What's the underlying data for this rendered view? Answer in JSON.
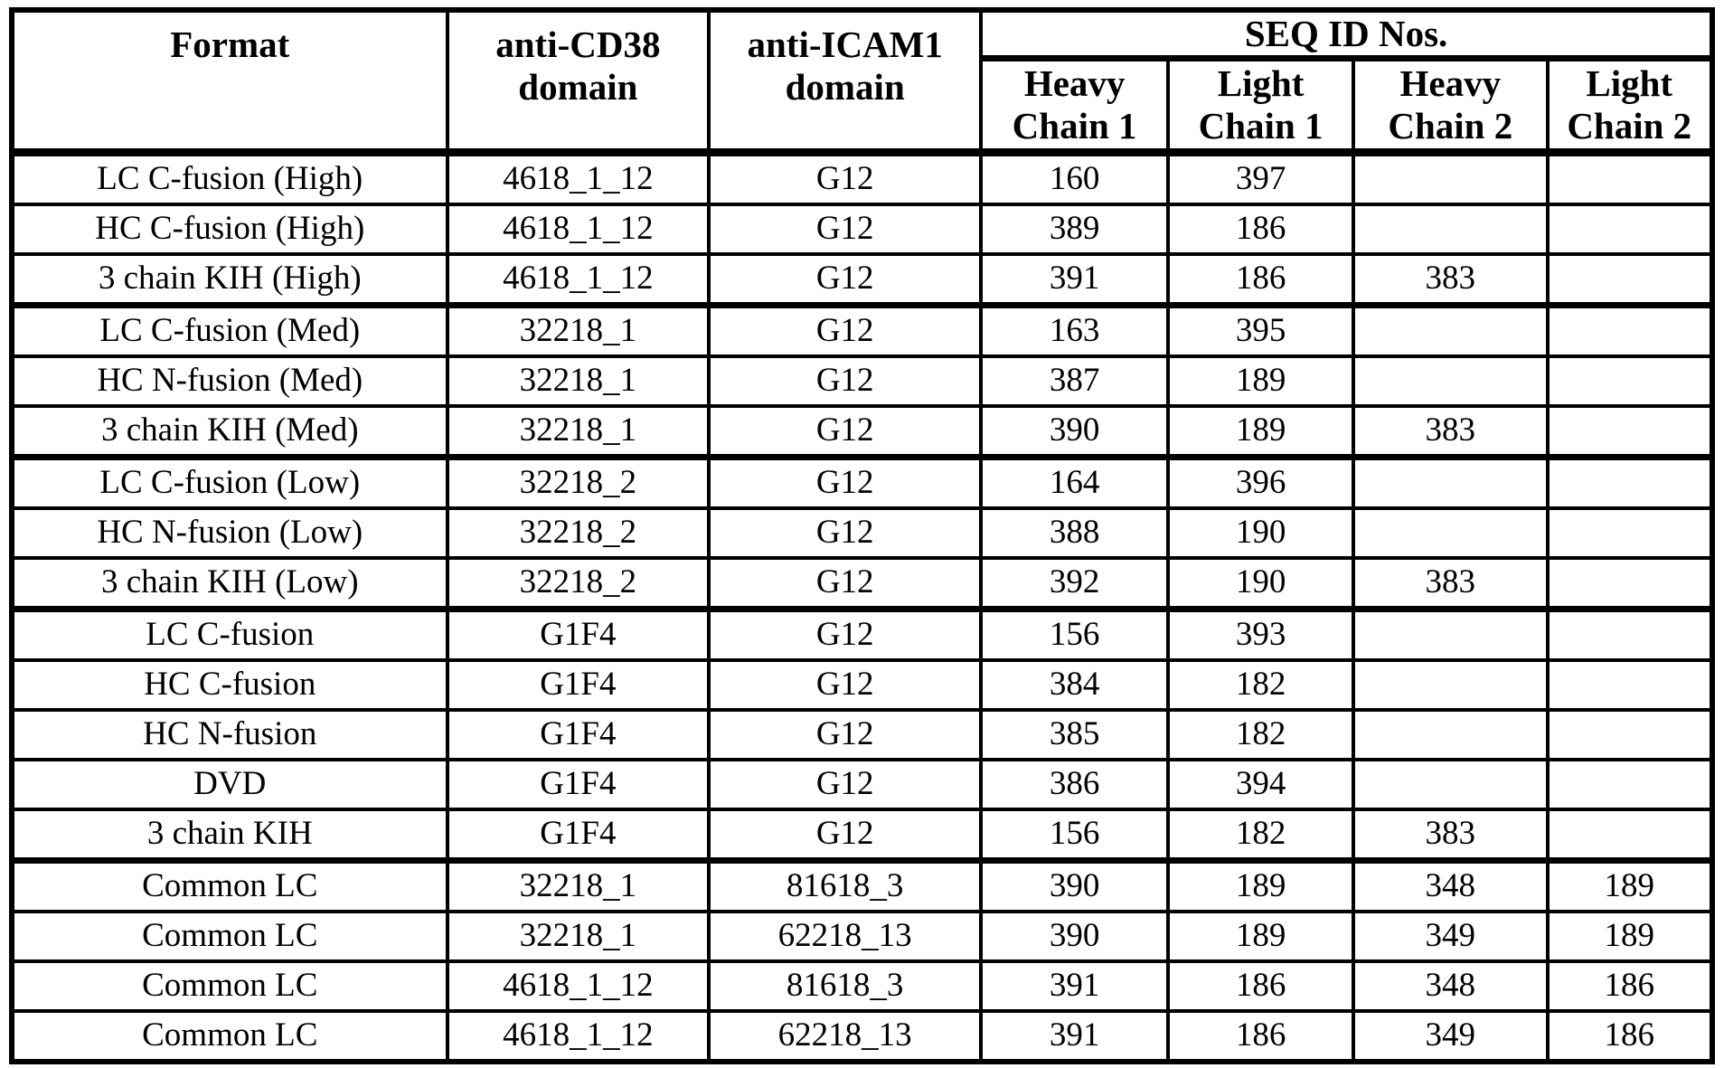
{
  "table": {
    "header": {
      "format": "Format",
      "cd38": "anti-CD38 domain",
      "icam1": "anti-ICAM1 domain",
      "seq_group": "SEQ ID Nos.",
      "sub": [
        "Heavy Chain 1",
        "Light Chain 1",
        "Heavy Chain 2",
        "Light Chain 2"
      ]
    },
    "row_keys": [
      "format",
      "cd38",
      "icam1",
      "hc1",
      "lc1",
      "hc2",
      "lc2"
    ],
    "group_separator_after_rows": [
      2,
      5,
      8,
      13
    ],
    "rows": [
      {
        "format": "LC C-fusion (High)",
        "cd38": "4618_1_12",
        "icam1": "G12",
        "hc1": "160",
        "lc1": "397",
        "hc2": "",
        "lc2": ""
      },
      {
        "format": "HC C-fusion (High)",
        "cd38": "4618_1_12",
        "icam1": "G12",
        "hc1": "389",
        "lc1": "186",
        "hc2": "",
        "lc2": ""
      },
      {
        "format": "3 chain KIH (High)",
        "cd38": "4618_1_12",
        "icam1": "G12",
        "hc1": "391",
        "lc1": "186",
        "hc2": "383",
        "lc2": ""
      },
      {
        "format": "LC C-fusion (Med)",
        "cd38": "32218_1",
        "icam1": "G12",
        "hc1": "163",
        "lc1": "395",
        "hc2": "",
        "lc2": ""
      },
      {
        "format": "HC N-fusion (Med)",
        "cd38": "32218_1",
        "icam1": "G12",
        "hc1": "387",
        "lc1": "189",
        "hc2": "",
        "lc2": ""
      },
      {
        "format": "3 chain KIH (Med)",
        "cd38": "32218_1",
        "icam1": "G12",
        "hc1": "390",
        "lc1": "189",
        "hc2": "383",
        "lc2": ""
      },
      {
        "format": "LC C-fusion (Low)",
        "cd38": "32218_2",
        "icam1": "G12",
        "hc1": "164",
        "lc1": "396",
        "hc2": "",
        "lc2": ""
      },
      {
        "format": "HC N-fusion (Low)",
        "cd38": "32218_2",
        "icam1": "G12",
        "hc1": "388",
        "lc1": "190",
        "hc2": "",
        "lc2": ""
      },
      {
        "format": "3 chain KIH (Low)",
        "cd38": "32218_2",
        "icam1": "G12",
        "hc1": "392",
        "lc1": "190",
        "hc2": "383",
        "lc2": ""
      },
      {
        "format": "LC C-fusion",
        "cd38": "G1F4",
        "icam1": "G12",
        "hc1": "156",
        "lc1": "393",
        "hc2": "",
        "lc2": ""
      },
      {
        "format": "HC C-fusion",
        "cd38": "G1F4",
        "icam1": "G12",
        "hc1": "384",
        "lc1": "182",
        "hc2": "",
        "lc2": ""
      },
      {
        "format": "HC N-fusion",
        "cd38": "G1F4",
        "icam1": "G12",
        "hc1": "385",
        "lc1": "182",
        "hc2": "",
        "lc2": ""
      },
      {
        "format": "DVD",
        "cd38": "G1F4",
        "icam1": "G12",
        "hc1": "386",
        "lc1": "394",
        "hc2": "",
        "lc2": ""
      },
      {
        "format": "3 chain KIH",
        "cd38": "G1F4",
        "icam1": "G12",
        "hc1": "156",
        "lc1": "182",
        "hc2": "383",
        "lc2": ""
      },
      {
        "format": "Common LC",
        "cd38": "32218_1",
        "icam1": "81618_3",
        "hc1": "390",
        "lc1": "189",
        "hc2": "348",
        "lc2": "189"
      },
      {
        "format": "Common LC",
        "cd38": "32218_1",
        "icam1": "62218_13",
        "hc1": "390",
        "lc1": "189",
        "hc2": "349",
        "lc2": "189"
      },
      {
        "format": "Common LC",
        "cd38": "4618_1_12",
        "icam1": "81618_3",
        "hc1": "391",
        "lc1": "186",
        "hc2": "348",
        "lc2": "186"
      },
      {
        "format": "Common LC",
        "cd38": "4618_1_12",
        "icam1": "62218_13",
        "hc1": "391",
        "lc1": "186",
        "hc2": "349",
        "lc2": "186"
      }
    ]
  }
}
